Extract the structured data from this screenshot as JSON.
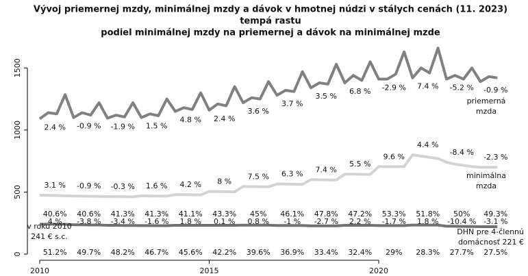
{
  "chart_data": {
    "type": "line",
    "title": "Vývoj priemernej mzdy, minimálnej mzdy a dávok v hmotnej núdzi v stálych cenách (11. 2023)",
    "subtitle": "tempá rastu",
    "subtitle2": "podiel minimálnej mzdy na priemernej a dávok na minimálnej mzde",
    "x": [
      2010,
      2010.25,
      2010.5,
      2010.75,
      2011,
      2011.25,
      2011.5,
      2011.75,
      2012,
      2012.25,
      2012.5,
      2012.75,
      2013,
      2013.25,
      2013.5,
      2013.75,
      2014,
      2014.25,
      2014.5,
      2014.75,
      2015,
      2015.25,
      2015.5,
      2015.75,
      2016,
      2016.25,
      2016.5,
      2016.75,
      2017,
      2017.25,
      2017.5,
      2017.75,
      2018,
      2018.25,
      2018.5,
      2018.75,
      2019,
      2019.25,
      2019.5,
      2019.75,
      2020,
      2020.25,
      2020.5,
      2020.75,
      2021,
      2021.25,
      2021.5,
      2021.75,
      2022,
      2022.25,
      2022.5,
      2022.75,
      2023,
      2023.25,
      2023.5
    ],
    "series": [
      {
        "name": "priemerná mzda",
        "color": "#808080",
        "values": [
          1090,
          1140,
          1130,
          1285,
          1100,
          1140,
          1120,
          1220,
          1095,
          1120,
          1105,
          1220,
          1100,
          1130,
          1115,
          1250,
          1150,
          1180,
          1165,
          1300,
          1160,
          1210,
          1195,
          1350,
          1220,
          1260,
          1250,
          1390,
          1280,
          1320,
          1310,
          1470,
          1340,
          1380,
          1370,
          1530,
          1380,
          1440,
          1400,
          1550,
          1410,
          1410,
          1450,
          1630,
          1420,
          1500,
          1460,
          1660,
          1410,
          1440,
          1410,
          1500,
          1390,
          1430,
          1420
        ]
      },
      {
        "name": "minimálna mzda",
        "color": "#d3d3d3",
        "values": [
          475,
          473,
          472,
          470,
          468,
          467,
          466,
          465,
          464,
          463,
          462,
          461,
          470,
          469,
          468,
          467,
          480,
          479,
          478,
          477,
          505,
          504,
          503,
          502,
          545,
          544,
          543,
          542,
          565,
          564,
          563,
          562,
          600,
          599,
          598,
          597,
          645,
          644,
          643,
          642,
          705,
          705,
          705,
          705,
          800,
          790,
          780,
          770,
          740,
          725,
          715,
          705,
          700,
          700,
          700
        ]
      },
      {
        "name": "DHN pre 4-člennú domácnosť 221 €",
        "color": "#707070",
        "values": [
          241,
          241,
          240,
          240,
          236,
          236,
          235,
          235,
          232,
          232,
          231,
          231,
          230,
          230,
          229,
          229,
          232,
          232,
          232,
          232,
          232,
          232,
          232,
          232,
          233,
          233,
          233,
          233,
          231,
          231,
          231,
          231,
          228,
          228,
          228,
          228,
          232,
          232,
          232,
          232,
          230,
          230,
          230,
          230,
          234,
          234,
          234,
          234,
          225,
          224,
          223,
          222,
          221,
          221,
          221
        ]
      }
    ],
    "avg_growth": [
      "2.4 %",
      "-0.9 %",
      "-1.9 %",
      "1.5 %",
      "4.8 %",
      "2.4 %",
      "3.6 %",
      "3.7 %",
      "3.5 %",
      "6.8 %",
      "-2.9 %",
      "7.4 %",
      "-5.2 %",
      "-0.9 %"
    ],
    "min_growth": [
      "3.1 %",
      "-0.9 %",
      "-0.3 %",
      "1.6 %",
      "4.2 %",
      "8 %",
      "7.5 %",
      "6.3 %",
      "7.4 %",
      "5.5 %",
      "9.6 %",
      "4.4 %",
      "-8.4 %",
      "-2.3 %"
    ],
    "share_min": [
      "40.6%",
      "40.6%",
      "41.3%",
      "41.3%",
      "41.1%",
      "43.3%",
      "45%",
      "46.1%",
      "47.8%",
      "47.2%",
      "53.3%",
      "51.8%",
      "50%",
      "49.3%"
    ],
    "dhn_growth": [
      "4 %",
      "-3.8 %",
      "-3.4 %",
      "-1.6 %",
      "1.8 %",
      "0.1 %",
      "0.8 %",
      "-1 %",
      "-2.7 %",
      "2.2 %",
      "-1.7 %",
      "1.8 %",
      "-10.4 %",
      "-3.1 %"
    ],
    "share_dhn": [
      "51.2%",
      "49.7%",
      "48.2%",
      "46.7%",
      "45.6%",
      "42.2%",
      "39.6%",
      "36.9%",
      "33.4%",
      "32.4%",
      "29%",
      "28.3%",
      "27.7%",
      "27.5%"
    ],
    "label_avg": [
      "priemerná",
      "mzda"
    ],
    "label_min": [
      "minimálna",
      "mzda"
    ],
    "label_dhn": [
      "DHN pre 4-člennú",
      "domácnosť 221 €"
    ],
    "label_2010": [
      "v roku 2010",
      "241 € s.c."
    ],
    "xlim": [
      2009.6,
      2024
    ],
    "xticks": [
      2010,
      2015,
      2020
    ],
    "ylim": [
      -55,
      1700
    ],
    "yticks": [
      0,
      500,
      1000,
      1500
    ]
  }
}
